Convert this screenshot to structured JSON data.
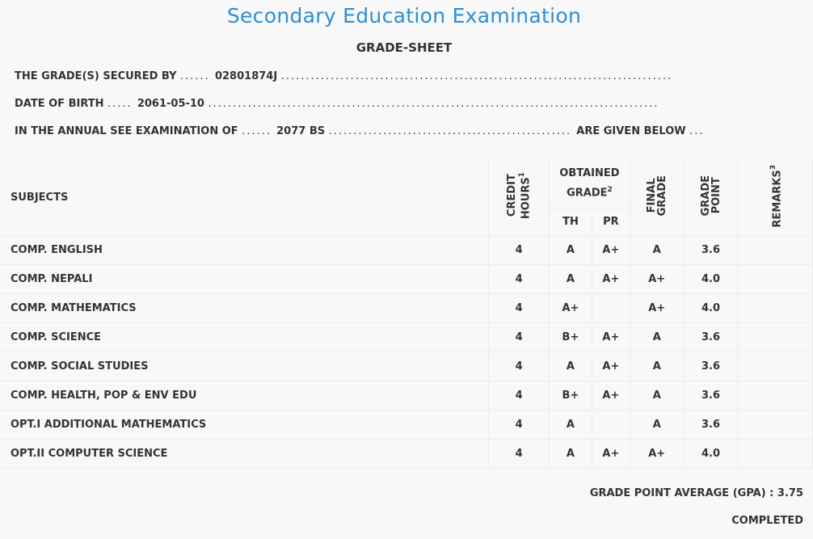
{
  "header": {
    "title": "Secondary Education Examination",
    "subtitle": "GRADE-SHEET"
  },
  "info": {
    "secured_by_label": "THE GRADE(S) SECURED BY",
    "secured_by_value": "02801874J",
    "dob_label": "DATE OF BIRTH",
    "dob_value": "2061-05-10",
    "exam_label": "IN THE ANNUAL SEE EXAMINATION OF",
    "exam_value": "2077 BS",
    "exam_suffix": "ARE GIVEN BELOW"
  },
  "table": {
    "headers": {
      "subjects": "SUBJECTS",
      "credit_line1": "CREDIT",
      "credit_line2": "HOURS",
      "credit_sup": "1",
      "obtained_line1": "OBTAINED",
      "obtained_line2": "GRADE",
      "obtained_sup": "2",
      "th": "TH",
      "pr": "PR",
      "final_line1": "FINAL",
      "final_line2": "GRADE",
      "gp_line1": "GRADE",
      "gp_line2": "POINT",
      "remarks": "REMARKS",
      "remarks_sup": "3"
    },
    "rows": [
      {
        "subject": "COMP. ENGLISH",
        "credit": "4",
        "th": "A",
        "pr": "A+",
        "final": "A",
        "gp": "3.6",
        "remarks": ""
      },
      {
        "subject": "COMP. NEPALI",
        "credit": "4",
        "th": "A",
        "pr": "A+",
        "final": "A+",
        "gp": "4.0",
        "remarks": ""
      },
      {
        "subject": "COMP. MATHEMATICS",
        "credit": "4",
        "th": "A+",
        "pr": "",
        "final": "A+",
        "gp": "4.0",
        "remarks": ""
      },
      {
        "subject": "COMP. SCIENCE",
        "credit": "4",
        "th": "B+",
        "pr": "A+",
        "final": "A",
        "gp": "3.6",
        "remarks": ""
      },
      {
        "subject": "COMP. SOCIAL STUDIES",
        "credit": "4",
        "th": "A",
        "pr": "A+",
        "final": "A",
        "gp": "3.6",
        "remarks": ""
      },
      {
        "subject": "COMP. HEALTH, POP & ENV EDU",
        "credit": "4",
        "th": "B+",
        "pr": "A+",
        "final": "A",
        "gp": "3.6",
        "remarks": ""
      },
      {
        "subject": "OPT.I ADDITIONAL MATHEMATICS",
        "credit": "4",
        "th": "A",
        "pr": "",
        "final": "A",
        "gp": "3.6",
        "remarks": ""
      },
      {
        "subject": "OPT.II COMPUTER SCIENCE",
        "credit": "4",
        "th": "A",
        "pr": "A+",
        "final": "A+",
        "gp": "4.0",
        "remarks": ""
      }
    ]
  },
  "summary": {
    "gpa_label": "GRADE POINT AVERAGE (GPA) :",
    "gpa_value": "3.75",
    "status": "COMPLETED"
  }
}
